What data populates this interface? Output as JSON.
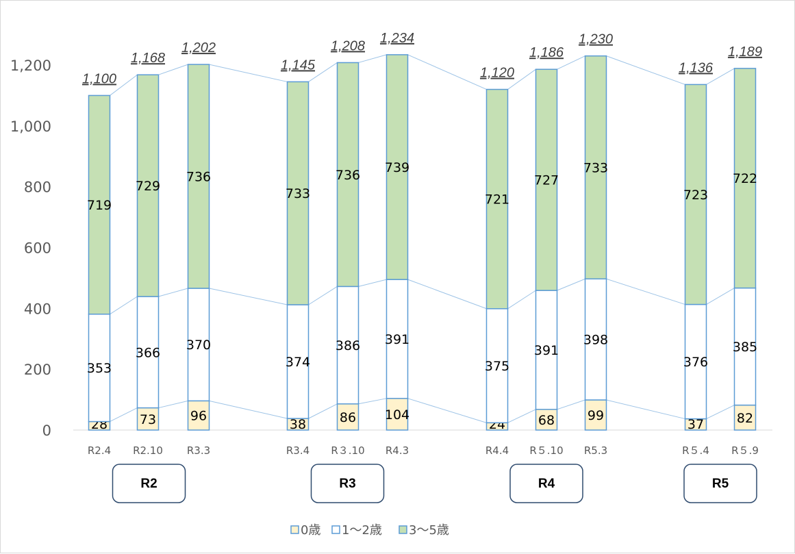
{
  "chart_data": {
    "type": "bar",
    "stacked": true,
    "categories": [
      "R2.4",
      "R2.10",
      "R3.3",
      "R3.4",
      "R３.10",
      "R4.3",
      "R4.4",
      "R５.10",
      "R5.3",
      "R５.4",
      "R５.9"
    ],
    "series": [
      {
        "name": "0歳",
        "color": "#fff2cc",
        "values": [
          28,
          73,
          96,
          38,
          86,
          104,
          24,
          68,
          99,
          37,
          82
        ]
      },
      {
        "name": "1～2歳",
        "color": "#ffffff",
        "values": [
          353,
          366,
          370,
          374,
          386,
          391,
          375,
          391,
          398,
          376,
          385
        ]
      },
      {
        "name": "3～5歳",
        "color": "#c5e0b4",
        "values": [
          719,
          729,
          736,
          733,
          736,
          739,
          721,
          727,
          733,
          723,
          722
        ]
      }
    ],
    "totals": [
      "1,100",
      "1,168",
      "1,202",
      "1,145",
      "1,208",
      "1,234",
      "1,120",
      "1,186",
      "1,230",
      "1,136",
      "1,189"
    ],
    "groups": [
      {
        "label": "R2",
        "members": [
          0,
          1,
          2
        ]
      },
      {
        "label": "R3",
        "members": [
          3,
          4,
          5
        ]
      },
      {
        "label": "R4",
        "members": [
          6,
          7,
          8
        ]
      },
      {
        "label": "R5",
        "members": [
          9,
          10
        ]
      }
    ],
    "y_ticks": [
      "0",
      "200",
      "400",
      "600",
      "800",
      "1,000",
      "1,200"
    ],
    "ylim": [
      0,
      1200
    ],
    "legend_position": "bottom",
    "bar_border_color": "#5b9bd5",
    "series_line_color": "#9dc3e6"
  }
}
